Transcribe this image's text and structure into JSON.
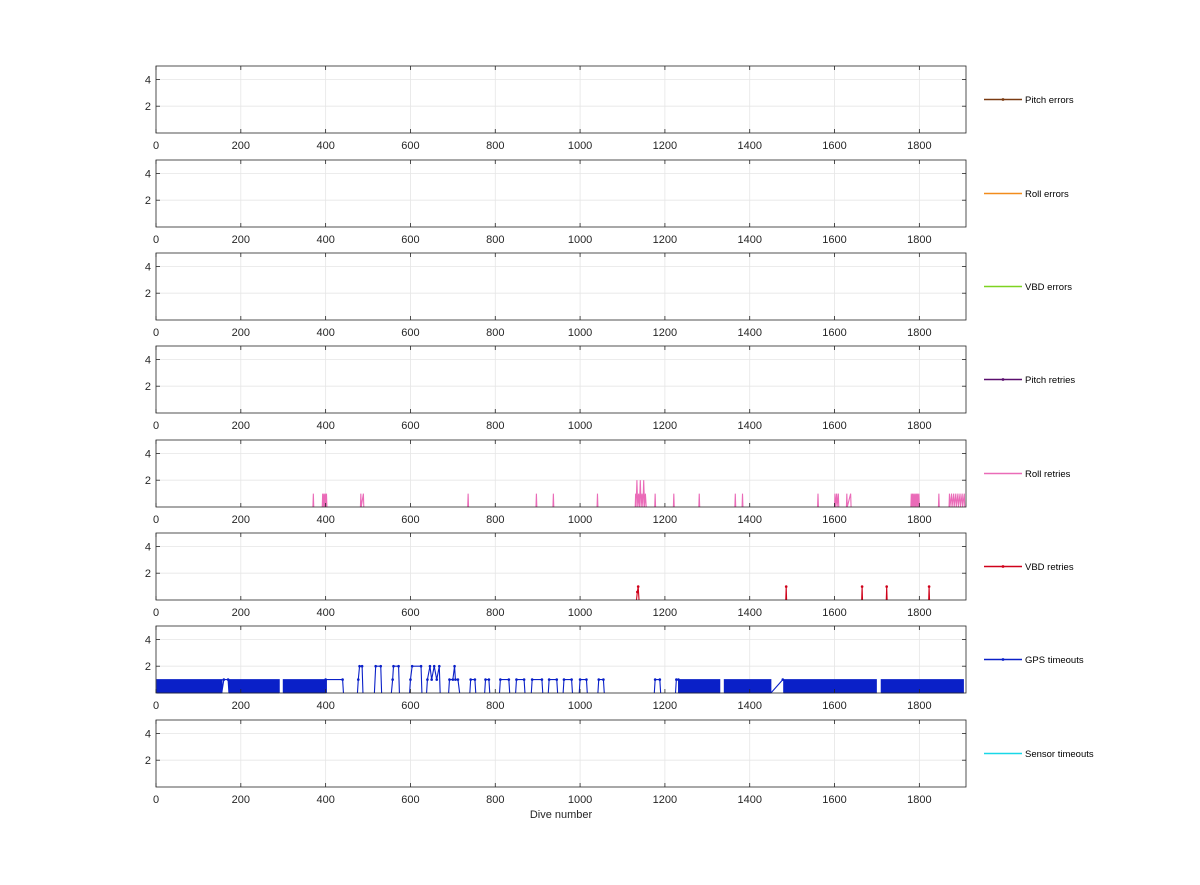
{
  "chart_data": [
    {
      "type": "line",
      "legend": "Pitch errors",
      "color": "#7a3b12",
      "marker": true,
      "xlim": [
        0,
        1910
      ],
      "ylim": [
        0,
        5
      ],
      "xticks": [
        0,
        200,
        400,
        600,
        800,
        1000,
        1200,
        1400,
        1600,
        1800
      ],
      "yticks": [
        2,
        4
      ],
      "grid": true,
      "legend_position": "right",
      "xlabel": "",
      "segments": []
    },
    {
      "type": "line",
      "legend": "Roll errors",
      "color": "#f28c1c",
      "marker": false,
      "xlim": [
        0,
        1910
      ],
      "ylim": [
        0,
        5
      ],
      "xticks": [
        0,
        200,
        400,
        600,
        800,
        1000,
        1200,
        1400,
        1600,
        1800
      ],
      "yticks": [
        2,
        4
      ],
      "grid": true,
      "legend_position": "right",
      "xlabel": "",
      "segments": []
    },
    {
      "type": "line",
      "legend": "VBD errors",
      "color": "#7ed321",
      "marker": false,
      "xlim": [
        0,
        1910
      ],
      "ylim": [
        0,
        5
      ],
      "xticks": [
        0,
        200,
        400,
        600,
        800,
        1000,
        1200,
        1400,
        1600,
        1800
      ],
      "yticks": [
        2,
        4
      ],
      "grid": true,
      "legend_position": "right",
      "xlabel": "",
      "segments": []
    },
    {
      "type": "line",
      "legend": "Pitch retries",
      "color": "#5a0f6e",
      "marker": true,
      "xlim": [
        0,
        1910
      ],
      "ylim": [
        0,
        5
      ],
      "xticks": [
        0,
        200,
        400,
        600,
        800,
        1000,
        1200,
        1400,
        1600,
        1800
      ],
      "yticks": [
        2,
        4
      ],
      "grid": true,
      "legend_position": "right",
      "xlabel": "",
      "segments": []
    },
    {
      "type": "line",
      "legend": "Roll retries",
      "color": "#ea6bb8",
      "marker": false,
      "xlim": [
        0,
        1910
      ],
      "ylim": [
        0,
        5
      ],
      "xticks": [
        0,
        200,
        400,
        600,
        800,
        1000,
        1200,
        1400,
        1600,
        1800
      ],
      "yticks": [
        2,
        4
      ],
      "grid": true,
      "legend_position": "right",
      "xlabel": "",
      "segments": [
        [
          [
            370,
            0
          ],
          [
            371,
            1
          ],
          [
            372,
            0
          ]
        ],
        [
          [
            392,
            0
          ],
          [
            393,
            1
          ],
          [
            394,
            0
          ],
          [
            396,
            1
          ],
          [
            397,
            0
          ],
          [
            399,
            1
          ],
          [
            400,
            0
          ],
          [
            402,
            1
          ],
          [
            403,
            0
          ]
        ],
        [
          [
            482,
            0
          ],
          [
            483,
            1
          ],
          [
            484,
            0
          ],
          [
            489,
            1
          ],
          [
            490,
            0
          ]
        ],
        [
          [
            735,
            0
          ],
          [
            736,
            1
          ],
          [
            737,
            0
          ]
        ],
        [
          [
            896,
            0
          ],
          [
            897,
            1
          ],
          [
            898,
            0
          ]
        ],
        [
          [
            936,
            0
          ],
          [
            937,
            1
          ],
          [
            938,
            0
          ]
        ],
        [
          [
            1040,
            0
          ],
          [
            1041,
            1
          ],
          [
            1042,
            0
          ]
        ],
        [
          [
            1130,
            0
          ],
          [
            1131,
            1
          ],
          [
            1132,
            0
          ],
          [
            1134,
            2
          ],
          [
            1136,
            0
          ],
          [
            1138,
            1
          ],
          [
            1140,
            0
          ],
          [
            1142,
            2
          ],
          [
            1144,
            0
          ],
          [
            1146,
            1
          ],
          [
            1148,
            0
          ],
          [
            1150,
            2
          ],
          [
            1152,
            0
          ],
          [
            1154,
            1
          ],
          [
            1156,
            0
          ]
        ],
        [
          [
            1176,
            0
          ],
          [
            1177,
            1
          ],
          [
            1178,
            0
          ]
        ],
        [
          [
            1220,
            0
          ],
          [
            1221,
            1
          ],
          [
            1222,
            0
          ]
        ],
        [
          [
            1280,
            0
          ],
          [
            1281,
            1
          ],
          [
            1282,
            0
          ]
        ],
        [
          [
            1365,
            0
          ],
          [
            1366,
            1
          ],
          [
            1367,
            0
          ]
        ],
        [
          [
            1382,
            0
          ],
          [
            1383,
            1
          ],
          [
            1384,
            0
          ]
        ],
        [
          [
            1560,
            0
          ],
          [
            1561,
            1
          ],
          [
            1562,
            0
          ]
        ],
        [
          [
            1600,
            0
          ],
          [
            1601,
            1
          ],
          [
            1602,
            0
          ],
          [
            1605,
            1
          ],
          [
            1606,
            0
          ],
          [
            1609,
            1
          ],
          [
            1610,
            0
          ]
        ],
        [
          [
            1628,
            0
          ],
          [
            1629,
            1
          ],
          [
            1630,
            0
          ],
          [
            1638,
            1
          ],
          [
            1639,
            0
          ]
        ],
        [
          [
            1780,
            0
          ],
          [
            1781,
            1
          ],
          [
            1782,
            0
          ],
          [
            1784,
            1
          ],
          [
            1785,
            0
          ],
          [
            1787,
            1
          ],
          [
            1788,
            0
          ],
          [
            1790,
            1
          ],
          [
            1791,
            0
          ],
          [
            1793,
            1
          ],
          [
            1794,
            0
          ],
          [
            1796,
            1
          ],
          [
            1797,
            0
          ],
          [
            1799,
            1
          ],
          [
            1800,
            0
          ]
        ],
        [
          [
            1845,
            0
          ],
          [
            1846,
            1
          ],
          [
            1847,
            0
          ]
        ],
        [
          [
            1870,
            0
          ],
          [
            1871,
            1
          ],
          [
            1872,
            0
          ],
          [
            1876,
            1
          ],
          [
            1877,
            0
          ],
          [
            1881,
            1
          ],
          [
            1882,
            0
          ],
          [
            1886,
            1
          ],
          [
            1887,
            0
          ],
          [
            1891,
            1
          ],
          [
            1892,
            0
          ],
          [
            1896,
            1
          ],
          [
            1897,
            0
          ],
          [
            1901,
            1
          ],
          [
            1902,
            0
          ],
          [
            1906,
            1
          ],
          [
            1907,
            0
          ]
        ]
      ]
    },
    {
      "type": "line",
      "legend": "VBD retries",
      "color": "#d0021b",
      "marker": true,
      "xlim": [
        0,
        1910
      ],
      "ylim": [
        0,
        5
      ],
      "xticks": [
        0,
        200,
        400,
        600,
        800,
        1000,
        1200,
        1400,
        1600,
        1800
      ],
      "yticks": [
        2,
        4
      ],
      "grid": true,
      "legend_position": "right",
      "xlabel": "",
      "segments": [
        [
          [
            1133,
            0
          ],
          [
            1135,
            0.6
          ],
          [
            1137,
            1
          ],
          [
            1139,
            0
          ]
        ],
        [
          [
            1485,
            0
          ],
          [
            1486,
            1
          ],
          [
            1487,
            0
          ]
        ],
        [
          [
            1664,
            0
          ],
          [
            1665,
            1
          ],
          [
            1666,
            0
          ]
        ],
        [
          [
            1722,
            0
          ],
          [
            1723,
            1
          ],
          [
            1724,
            0
          ]
        ],
        [
          [
            1822,
            0
          ],
          [
            1823,
            1
          ],
          [
            1824,
            0
          ]
        ]
      ]
    },
    {
      "type": "line",
      "legend": "GPS timeouts",
      "color": "#0a20c8",
      "marker": true,
      "xlim": [
        0,
        1910
      ],
      "ylim": [
        0,
        5
      ],
      "xticks": [
        0,
        200,
        400,
        600,
        800,
        1000,
        1200,
        1400,
        1600,
        1800
      ],
      "yticks": [
        2,
        4
      ],
      "grid": true,
      "legend_position": "right",
      "xlabel": "",
      "comb": [
        {
          "start": 2,
          "end": 155,
          "step": 2.5,
          "level": 1
        },
        {
          "start": 172,
          "end": 290,
          "step": 2.5,
          "level": 1
        },
        {
          "start": 300,
          "end": 400,
          "step": 4,
          "level": 1
        },
        {
          "start": 1232,
          "end": 1330,
          "step": 3,
          "level": 1
        },
        {
          "start": 1340,
          "end": 1450,
          "step": 4,
          "level": 1
        },
        {
          "start": 1480,
          "end": 1700,
          "step": 3.5,
          "level": 1
        },
        {
          "start": 1710,
          "end": 1905,
          "step": 4,
          "level": 1
        }
      ],
      "segments": [
        [
          [
            155,
            0
          ],
          [
            160,
            1
          ],
          [
            170,
            1
          ],
          [
            172,
            0
          ]
        ],
        [
          [
            400,
            1
          ],
          [
            440,
            1
          ],
          [
            442,
            0
          ]
        ],
        [
          [
            475,
            0
          ],
          [
            477,
            1
          ],
          [
            480,
            2
          ],
          [
            486,
            2
          ],
          [
            488,
            0
          ]
        ],
        [
          [
            515,
            0
          ],
          [
            518,
            2
          ],
          [
            530,
            2
          ],
          [
            532,
            0
          ]
        ],
        [
          [
            555,
            0
          ],
          [
            558,
            1
          ],
          [
            560,
            2
          ],
          [
            572,
            2
          ],
          [
            574,
            0
          ]
        ],
        [
          [
            598,
            0
          ],
          [
            600,
            1
          ],
          [
            604,
            2
          ],
          [
            625,
            2
          ],
          [
            627,
            0
          ]
        ],
        [
          [
            638,
            0
          ],
          [
            640,
            1
          ],
          [
            646,
            2
          ],
          [
            650,
            1
          ],
          [
            656,
            2
          ],
          [
            662,
            1
          ],
          [
            668,
            2
          ],
          [
            670,
            0
          ]
        ],
        [
          [
            690,
            0
          ],
          [
            692,
            1
          ],
          [
            700,
            1
          ],
          [
            704,
            2
          ],
          [
            706,
            1
          ],
          [
            712,
            1
          ],
          [
            716,
            0
          ]
        ],
        [
          [
            740,
            0
          ],
          [
            742,
            1
          ],
          [
            752,
            1
          ],
          [
            754,
            0
          ]
        ],
        [
          [
            775,
            0
          ],
          [
            777,
            1
          ],
          [
            785,
            1
          ],
          [
            787,
            0
          ]
        ],
        [
          [
            810,
            0
          ],
          [
            812,
            1
          ],
          [
            832,
            1
          ],
          [
            834,
            0
          ]
        ],
        [
          [
            848,
            0
          ],
          [
            850,
            1
          ],
          [
            868,
            1
          ],
          [
            870,
            0
          ]
        ],
        [
          [
            885,
            0
          ],
          [
            887,
            1
          ],
          [
            910,
            1
          ],
          [
            912,
            0
          ]
        ],
        [
          [
            925,
            0
          ],
          [
            927,
            1
          ],
          [
            945,
            1
          ],
          [
            947,
            0
          ]
        ],
        [
          [
            960,
            0
          ],
          [
            962,
            1
          ],
          [
            980,
            1
          ],
          [
            982,
            0
          ]
        ],
        [
          [
            998,
            0
          ],
          [
            1000,
            1
          ],
          [
            1015,
            1
          ],
          [
            1017,
            0
          ]
        ],
        [
          [
            1042,
            0
          ],
          [
            1044,
            1
          ],
          [
            1055,
            1
          ],
          [
            1057,
            0
          ]
        ],
        [
          [
            1175,
            0
          ],
          [
            1177,
            1
          ],
          [
            1188,
            1
          ],
          [
            1190,
            0
          ]
        ],
        [
          [
            1225,
            0
          ],
          [
            1227,
            1
          ],
          [
            1232,
            1
          ]
        ],
        [
          [
            1450,
            0
          ],
          [
            1478,
            1
          ]
        ]
      ]
    },
    {
      "type": "line",
      "legend": "Sensor timeouts",
      "color": "#18d8e8",
      "marker": false,
      "xlim": [
        0,
        1910
      ],
      "ylim": [
        0,
        5
      ],
      "xticks": [
        0,
        200,
        400,
        600,
        800,
        1000,
        1200,
        1400,
        1600,
        1800
      ],
      "yticks": [
        2,
        4
      ],
      "grid": true,
      "legend_position": "right",
      "xlabel": "Dive number",
      "segments": []
    }
  ]
}
